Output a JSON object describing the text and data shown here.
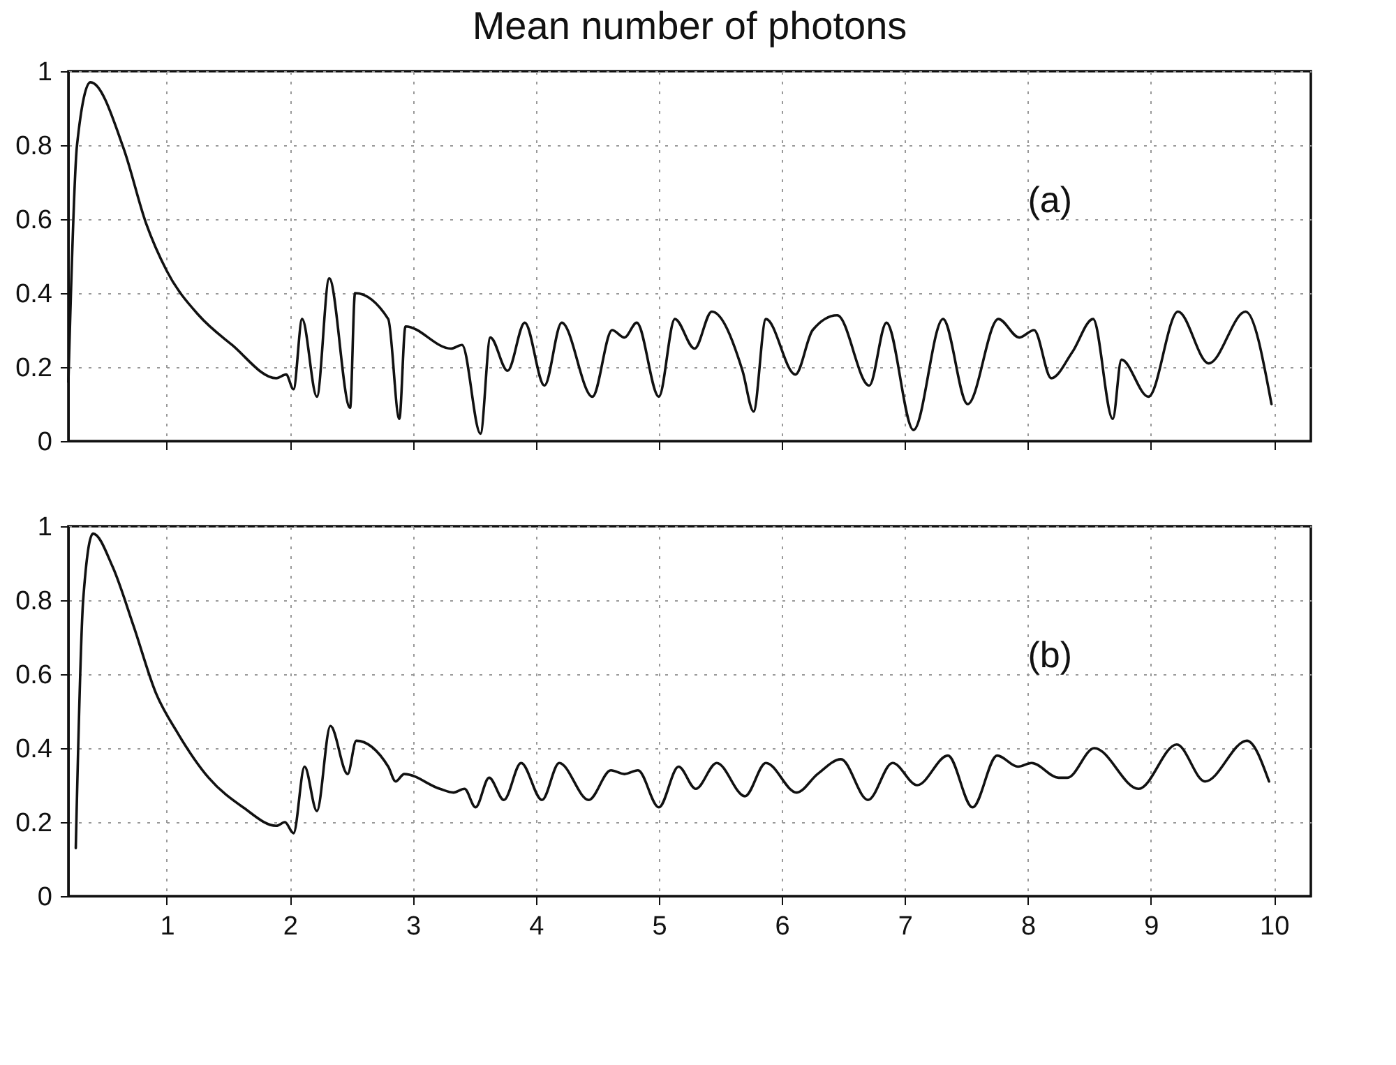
{
  "chart_data": [
    {
      "type": "line",
      "title": "Mean number of photons",
      "annotations": [
        "(a)"
      ],
      "xlim": [
        0.2,
        10.3
      ],
      "ylim": [
        0,
        1
      ],
      "xticks": [
        1,
        2,
        3,
        4,
        5,
        6,
        7,
        8,
        9,
        10
      ],
      "yticks": [
        0,
        0.2,
        0.4,
        0.6,
        0.8,
        1
      ],
      "tick_labels": "y",
      "grid": true,
      "series": [
        {
          "color": "#111111",
          "x": [
            0.2,
            0.27,
            0.38,
            0.65,
            0.83,
            1.0,
            1.26,
            1.53,
            1.89,
            1.97,
            2.03,
            2.1,
            2.22,
            2.32,
            2.49,
            2.53,
            2.8,
            2.89,
            2.94,
            3.31,
            3.4,
            3.55,
            3.63,
            3.77,
            3.91,
            4.07,
            4.21,
            4.46,
            4.62,
            4.72,
            4.82,
            5.0,
            5.13,
            5.29,
            5.43,
            5.68,
            5.77,
            5.87,
            6.11,
            6.25,
            6.45,
            6.71,
            6.85,
            7.07,
            7.31,
            7.51,
            7.76,
            7.93,
            8.05,
            8.19,
            8.36,
            8.53,
            8.69,
            8.76,
            8.98,
            9.22,
            9.47,
            9.77,
            9.98
          ],
          "values": [
            0.16,
            0.8,
            0.97,
            0.79,
            0.59,
            0.46,
            0.34,
            0.26,
            0.17,
            0.18,
            0.14,
            0.33,
            0.12,
            0.44,
            0.09,
            0.4,
            0.33,
            0.06,
            0.31,
            0.25,
            0.26,
            0.02,
            0.28,
            0.19,
            0.32,
            0.15,
            0.32,
            0.12,
            0.3,
            0.28,
            0.32,
            0.12,
            0.33,
            0.25,
            0.35,
            0.19,
            0.08,
            0.33,
            0.18,
            0.3,
            0.34,
            0.15,
            0.32,
            0.03,
            0.33,
            0.1,
            0.33,
            0.28,
            0.3,
            0.17,
            0.24,
            0.33,
            0.06,
            0.22,
            0.12,
            0.35,
            0.21,
            0.35,
            0.1
          ]
        }
      ]
    },
    {
      "type": "line",
      "annotations": [
        "(b)"
      ],
      "xlim": [
        0.2,
        10.3
      ],
      "ylim": [
        0,
        1
      ],
      "xticks": [
        1,
        2,
        3,
        4,
        5,
        6,
        7,
        8,
        9,
        10
      ],
      "yticks": [
        0,
        0.2,
        0.4,
        0.6,
        0.8,
        1
      ],
      "grid": true,
      "series": [
        {
          "color": "#111111",
          "x": [
            0.26,
            0.32,
            0.4,
            0.56,
            0.73,
            0.91,
            1.09,
            1.34,
            1.62,
            1.89,
            1.96,
            2.03,
            2.12,
            2.22,
            2.33,
            2.47,
            2.54,
            2.8,
            2.86,
            2.93,
            3.22,
            3.33,
            3.42,
            3.51,
            3.62,
            3.74,
            3.88,
            4.05,
            4.19,
            4.43,
            4.61,
            4.72,
            4.83,
            5.0,
            5.16,
            5.3,
            5.47,
            5.7,
            5.87,
            6.12,
            6.29,
            6.48,
            6.7,
            6.9,
            7.1,
            7.35,
            7.55,
            7.75,
            7.92,
            8.03,
            8.25,
            8.32,
            8.54,
            8.9,
            9.21,
            9.44,
            9.78,
            9.96
          ],
          "values": [
            0.13,
            0.8,
            0.98,
            0.89,
            0.73,
            0.55,
            0.44,
            0.32,
            0.24,
            0.19,
            0.2,
            0.17,
            0.35,
            0.23,
            0.46,
            0.33,
            0.42,
            0.35,
            0.31,
            0.33,
            0.29,
            0.28,
            0.29,
            0.24,
            0.32,
            0.26,
            0.36,
            0.26,
            0.36,
            0.26,
            0.34,
            0.33,
            0.34,
            0.24,
            0.35,
            0.29,
            0.36,
            0.27,
            0.36,
            0.28,
            0.33,
            0.37,
            0.26,
            0.36,
            0.3,
            0.38,
            0.24,
            0.38,
            0.35,
            0.36,
            0.32,
            0.32,
            0.4,
            0.29,
            0.41,
            0.31,
            0.42,
            0.31
          ]
        }
      ]
    }
  ]
}
